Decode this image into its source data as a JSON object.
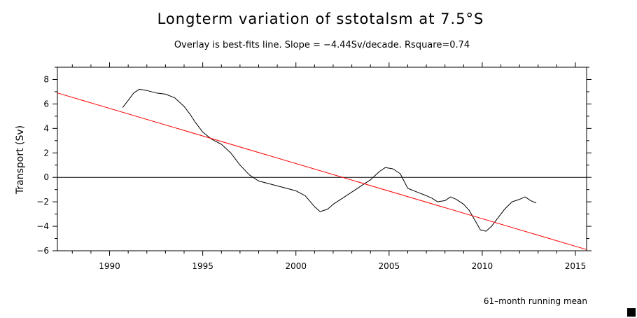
{
  "chart_data": {
    "type": "line",
    "title": "Longterm variation of sstotalsm at 7.5°S",
    "subtitle": "Overlay is best-fits line. Slope = −4.44Sv/decade. Rsquare=0.74",
    "ylabel": "Transport (Sv)",
    "xlabel": "",
    "note": "61–month running mean",
    "xlim": [
      1987.2,
      2015.6
    ],
    "ylim": [
      -6,
      9
    ],
    "x_ticks": [
      1990,
      1995,
      2000,
      2005,
      2010,
      2015
    ],
    "y_ticks": [
      -6,
      -4,
      -2,
      0,
      2,
      4,
      6,
      8
    ],
    "legend": "none",
    "grid": false,
    "zero_line": true,
    "series": [
      {
        "color": "#000000",
        "x": [
          1990.7,
          1991.0,
          1991.3,
          1991.6,
          1992.0,
          1992.5,
          1993.0,
          1993.5,
          1994.0,
          1994.3,
          1994.6,
          1995.0,
          1995.5,
          1996.0,
          1996.5,
          1997.0,
          1997.5,
          1998.0,
          1998.5,
          1999.0,
          1999.5,
          2000.0,
          2000.5,
          2001.0,
          2001.3,
          2001.7,
          2002.0,
          2002.5,
          2003.0,
          2003.5,
          2004.0,
          2004.5,
          2004.8,
          2005.2,
          2005.6,
          2006.0,
          2006.5,
          2007.0,
          2007.3,
          2007.6,
          2008.0,
          2008.3,
          2008.6,
          2009.0,
          2009.3,
          2009.6,
          2009.9,
          2010.2,
          2010.5,
          2010.8,
          2011.2,
          2011.6,
          2012.0,
          2012.3,
          2012.6,
          2012.9
        ],
        "y": [
          5.7,
          6.3,
          6.9,
          7.2,
          7.1,
          6.9,
          6.8,
          6.5,
          5.8,
          5.2,
          4.5,
          3.7,
          3.1,
          2.7,
          2.0,
          1.0,
          0.2,
          -0.3,
          -0.5,
          -0.7,
          -0.9,
          -1.1,
          -1.5,
          -2.4,
          -2.8,
          -2.6,
          -2.2,
          -1.7,
          -1.2,
          -0.7,
          -0.2,
          0.5,
          0.8,
          0.7,
          0.3,
          -0.9,
          -1.2,
          -1.5,
          -1.7,
          -2.0,
          -1.9,
          -1.6,
          -1.8,
          -2.2,
          -2.7,
          -3.5,
          -4.3,
          -4.4,
          -4.0,
          -3.4,
          -2.6,
          -2.0,
          -1.8,
          -1.6,
          -1.9,
          -2.1
        ]
      },
      {
        "color": "#ff0000",
        "x": [
          1987.2,
          2015.6
        ],
        "y": [
          6.9,
          -5.9
        ]
      }
    ]
  },
  "corner_marker_color": "#000000"
}
